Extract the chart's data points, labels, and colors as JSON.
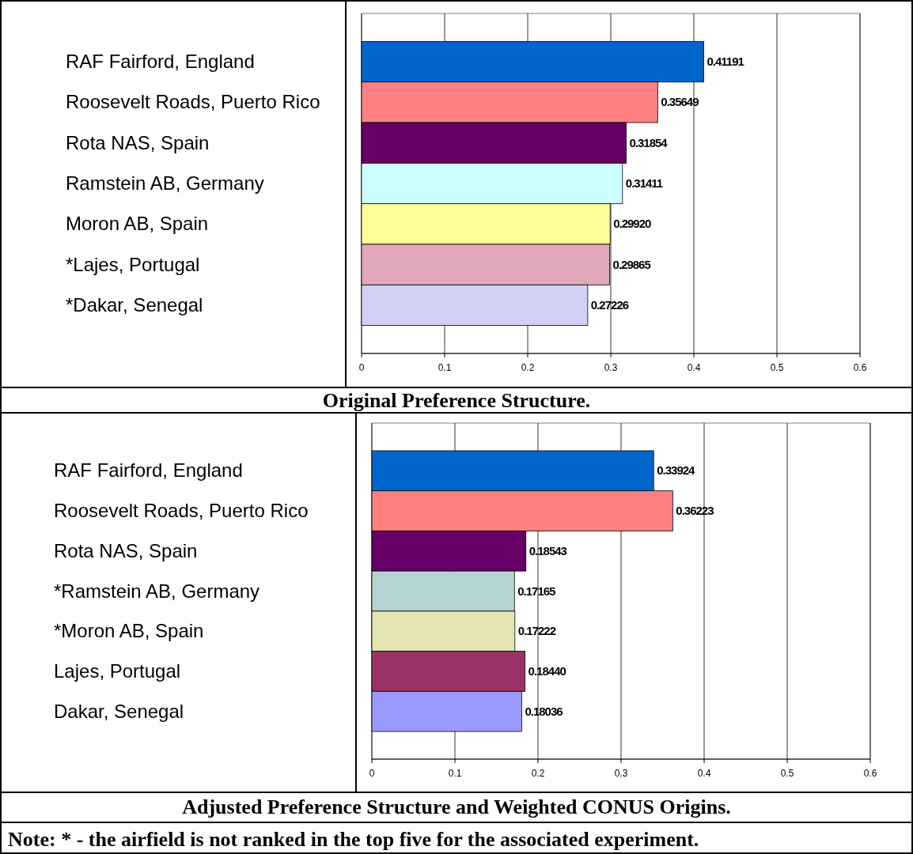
{
  "chart_data": [
    {
      "type": "bar",
      "orientation": "horizontal",
      "title": "Original Preference Structure.",
      "categories": [
        "RAF Fairford, England",
        "Roosevelt Roads, Puerto Rico",
        "Rota NAS, Spain",
        "Ramstein AB, Germany",
        "Moron AB, Spain",
        "*Lajes, Portugal",
        "*Dakar, Senegal"
      ],
      "values": [
        0.41191,
        0.35649,
        0.31854,
        0.31411,
        0.2992,
        0.29865,
        0.27226
      ],
      "value_labels": [
        "0.41191",
        "0.35649",
        "0.31854",
        "0.31411",
        "0.29920",
        "0.29865",
        "0.27226"
      ],
      "colors": [
        "#0066cc",
        "#ff8080",
        "#660066",
        "#ccffff",
        "#ffff99",
        "#e0a8b8",
        "#d0d0f4"
      ],
      "xlim": [
        0,
        0.6
      ],
      "xticks": [
        0,
        0.1,
        0.2,
        0.3,
        0.4,
        0.5,
        0.6
      ],
      "grid": "x"
    },
    {
      "type": "bar",
      "orientation": "horizontal",
      "title": "Adjusted Preference Structure and Weighted CONUS Origins.",
      "categories": [
        "RAF Fairford, England",
        "Roosevelt Roads, Puerto Rico",
        "Rota NAS, Spain",
        "*Ramstein AB, Germany",
        "*Moron AB, Spain",
        "Lajes, Portugal",
        "Dakar, Senegal"
      ],
      "values": [
        0.33924,
        0.36223,
        0.18543,
        0.17165,
        0.17222,
        0.1844,
        0.18036
      ],
      "value_labels": [
        "0.33924",
        "0.36223",
        "0.18543",
        "0.17165",
        "0.17222",
        "0.18440",
        "0.18036"
      ],
      "colors": [
        "#0066cc",
        "#ff8080",
        "#660066",
        "#b4d4d4",
        "#e4e4b0",
        "#993366",
        "#9999ff"
      ],
      "xlim": [
        0,
        0.6
      ],
      "xticks": [
        0,
        0.1,
        0.2,
        0.3,
        0.4,
        0.5,
        0.6
      ],
      "grid": "x",
      "annotations": [
        "Note: * - the airfield is not ranked in the top five for the associated experiment."
      ]
    }
  ]
}
